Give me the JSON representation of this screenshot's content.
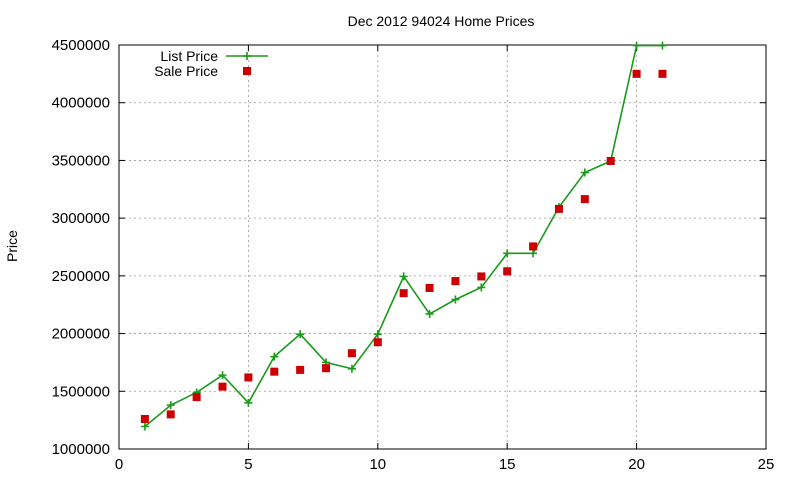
{
  "chart_data": {
    "type": "line",
    "title": "Dec 2012 94024 Home Prices",
    "xlabel": "",
    "ylabel": "Price",
    "xlim": [
      0,
      25
    ],
    "ylim": [
      1000000,
      4500000
    ],
    "xticks": [
      0,
      5,
      10,
      15,
      20,
      25
    ],
    "yticks": [
      1000000,
      1500000,
      2000000,
      2500000,
      3000000,
      3500000,
      4000000,
      4500000
    ],
    "grid": true,
    "legend_position": "top-left",
    "series": [
      {
        "name": "List Price",
        "style": "line-with-plus-markers",
        "color": "#1a9a1a",
        "x": [
          1,
          2,
          3,
          4,
          5,
          6,
          7,
          8,
          9,
          10,
          11,
          12,
          13,
          14,
          15,
          16,
          17,
          18,
          19,
          20,
          21
        ],
        "values": [
          1195000,
          1380000,
          1490000,
          1640000,
          1400000,
          1800000,
          1995000,
          1750000,
          1695000,
          1995000,
          2495000,
          2170000,
          2295000,
          2400000,
          2695000,
          2695000,
          3095000,
          3395000,
          3495000,
          4495000,
          4495000
        ]
      },
      {
        "name": "Sale Price",
        "style": "square-markers",
        "color": "#cc0000",
        "x": [
          1,
          2,
          3,
          4,
          5,
          6,
          7,
          8,
          9,
          10,
          11,
          12,
          13,
          14,
          15,
          16,
          17,
          18,
          19,
          20,
          21
        ],
        "values": [
          1260000,
          1300000,
          1450000,
          1540000,
          1620000,
          1670000,
          1685000,
          1700000,
          1830000,
          1925000,
          2350000,
          2395000,
          2455000,
          2495000,
          2540000,
          2755000,
          3080000,
          3165000,
          3495000,
          4250000,
          4250000
        ]
      }
    ]
  }
}
